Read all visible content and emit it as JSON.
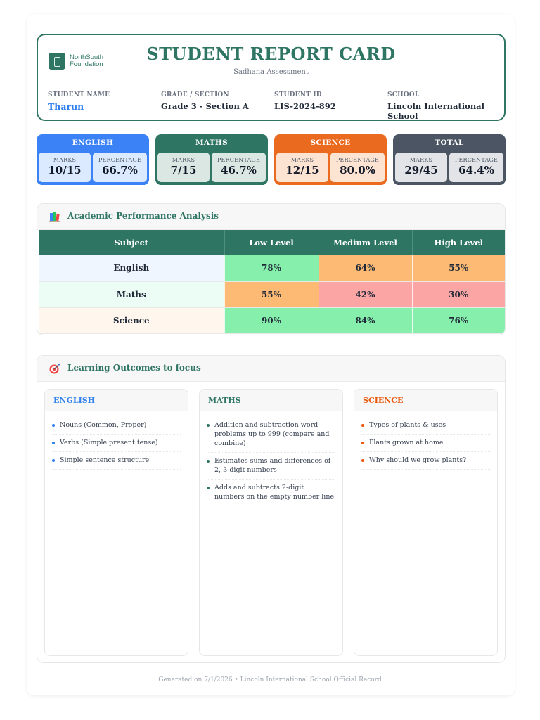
{
  "header": {
    "logo_line1": "NorthSouth",
    "logo_line2": "Foundation",
    "title": "STUDENT REPORT CARD",
    "subtitle": "Sadhana Assessment",
    "student_name_label": "STUDENT NAME",
    "student_name": "Tharun",
    "grade_label": "GRADE / SECTION",
    "grade": "Grade 3 - Section A",
    "student_id_label": "STUDENT ID",
    "student_id": "LIS-2024-892",
    "school_label": "SCHOOL",
    "school": "Lincoln International School"
  },
  "scores": [
    {
      "subject": "ENGLISH",
      "marks_label": "MARKS",
      "marks": "10/15",
      "pct_label": "PERCENTAGE",
      "pct": "66.7%",
      "color": "#3b82f6",
      "tint": "#dbeafe"
    },
    {
      "subject": "MATHS",
      "marks_label": "MARKS",
      "marks": "7/15",
      "pct_label": "PERCENTAGE",
      "pct": "46.7%",
      "color": "#2e7563",
      "tint": "#dbe7e3"
    },
    {
      "subject": "SCIENCE",
      "marks_label": "MARKS",
      "marks": "12/15",
      "pct_label": "PERCENTAGE",
      "pct": "80.0%",
      "color": "#ea6a1f",
      "tint": "#fde3d2"
    },
    {
      "subject": "TOTAL",
      "marks_label": "MARKS",
      "marks": "29/45",
      "pct_label": "PERCENTAGE",
      "pct": "64.4%",
      "color": "#4b5563",
      "tint": "#e2e4e8"
    }
  ],
  "performance": {
    "title": "Academic Performance Analysis",
    "headers": [
      "Subject",
      "Low Level",
      "Medium Level",
      "High Level"
    ],
    "rows": [
      {
        "subject": "English",
        "low": "78%",
        "medium": "64%",
        "high": "55%",
        "row_tint": "#eff6ff"
      },
      {
        "subject": "Maths",
        "low": "55%",
        "medium": "42%",
        "high": "30%",
        "row_tint": "#ecfdf5"
      },
      {
        "subject": "Science",
        "low": "90%",
        "medium": "84%",
        "high": "76%",
        "row_tint": "#fff7ed"
      }
    ]
  },
  "outcomes": {
    "title": "Learning Outcomes to focus",
    "columns": [
      {
        "subject": "ENGLISH",
        "color": "#2f80ed",
        "items": [
          "Nouns (Common, Proper)",
          "Verbs (Simple present tense)",
          "Simple sentence structure"
        ]
      },
      {
        "subject": "MATHS",
        "color": "#2e7563",
        "items": [
          "Addition and subtraction word problems up to 999 (compare and combine)",
          "Estimates sums and differences of 2, 3-digit numbers",
          "Adds and subtracts 2-digit numbers on the empty number line"
        ]
      },
      {
        "subject": "SCIENCE",
        "color": "#ea580c",
        "items": [
          "Types of plants & uses",
          "Plants grown at home",
          "Why should we grow plants?"
        ]
      }
    ]
  },
  "footer": "Generated on 7/1/2026 • Lincoln International School Official Record"
}
